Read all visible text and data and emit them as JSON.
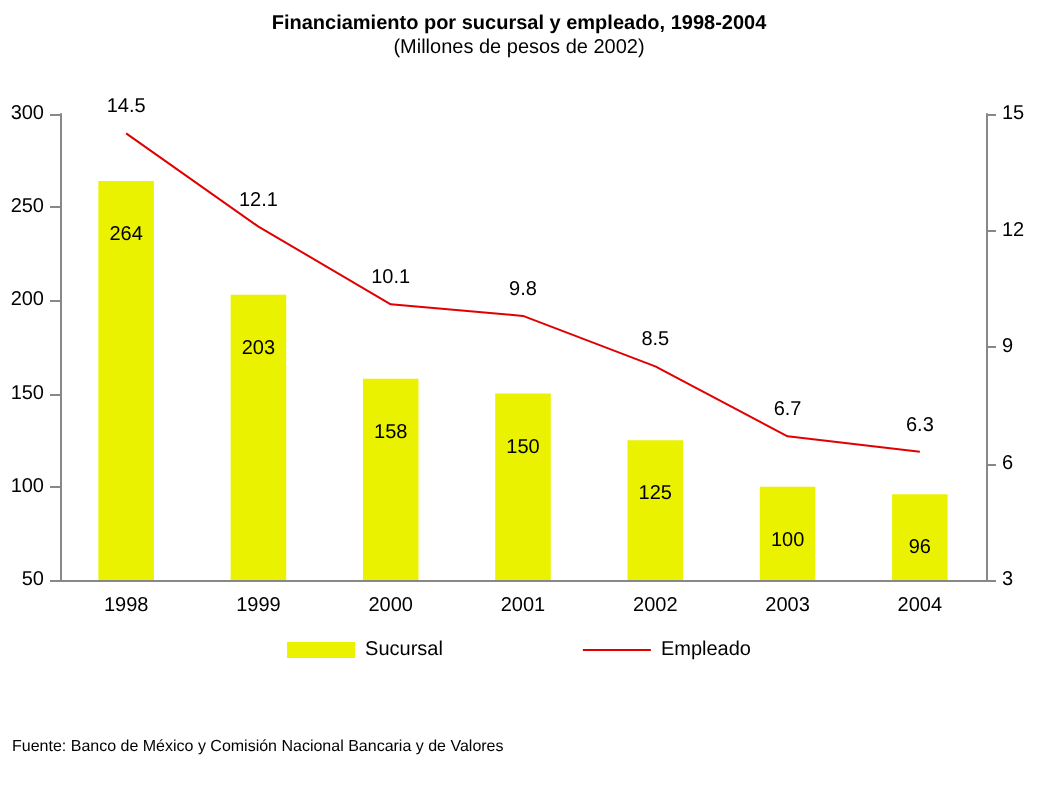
{
  "chart_data": {
    "type": "bar",
    "title": "Financiamiento por sucursal y empleado, 1998-2004",
    "subtitle": "(Millones de pesos de 2002)",
    "categories": [
      "1998",
      "1999",
      "2000",
      "2001",
      "2002",
      "2003",
      "2004"
    ],
    "series": [
      {
        "name": "Sucursal",
        "color": "#eaf200",
        "values": [
          264,
          203,
          158,
          150,
          125,
          100,
          96
        ]
      },
      {
        "name": "Empleado",
        "type": "line",
        "axis": "y2",
        "color": "#e00000",
        "values": [
          14.5,
          12.1,
          10.1,
          9.8,
          8.5,
          6.7,
          6.3
        ]
      }
    ],
    "ylim": [
      50,
      300
    ],
    "yticks": [
      50,
      100,
      150,
      200,
      250,
      300
    ],
    "y2lim": [
      3,
      15
    ],
    "y2ticks": [
      3,
      6,
      9,
      12,
      15
    ],
    "data_labels": true,
    "legend": "bottom",
    "grid": false,
    "marker": "none",
    "line_style": "solid",
    "annotations": [
      "Fuente: Banco de México y Comisión Nacional Bancaria y de Valores"
    ]
  }
}
